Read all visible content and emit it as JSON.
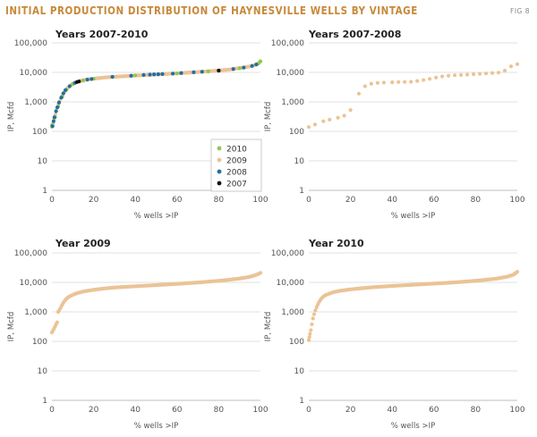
{
  "figure": {
    "title": "INITIAL PRODUCTION DISTRIBUTION OF HAYNESVILLE WELLS BY VINTAGE",
    "label": "FIG 8"
  },
  "colors": {
    "2010": "#8fc84f",
    "2009": "#ebc396",
    "2008": "#1f6fa3",
    "2007": "#111111",
    "title": "#c8893a"
  },
  "chart_data": [
    {
      "type": "scatter",
      "title": "Years 2007-2010",
      "xlabel": "% wells >IP",
      "ylabel": "IP, Mcfd",
      "xlim": [
        0,
        100
      ],
      "ylim": [
        1,
        100000
      ],
      "yscale": "log",
      "xticks": [
        "0",
        "20",
        "40",
        "60",
        "80",
        "100"
      ],
      "yticks": [
        "1",
        "10",
        "100",
        "1,000",
        "10,000",
        "100,000"
      ],
      "legend": {
        "position": "lower-right",
        "entries": [
          "2010",
          "2009",
          "2008",
          "2007"
        ]
      },
      "curve": [
        [
          0,
          140
        ],
        [
          0.5,
          180
        ],
        [
          1,
          250
        ],
        [
          1.5,
          350
        ],
        [
          2,
          480
        ],
        [
          3,
          800
        ],
        [
          4,
          1200
        ],
        [
          5,
          1700
        ],
        [
          6,
          2200
        ],
        [
          7,
          2700
        ],
        [
          8,
          3200
        ],
        [
          9,
          3700
        ],
        [
          10,
          4100
        ],
        [
          12,
          4700
        ],
        [
          14,
          5200
        ],
        [
          16,
          5600
        ],
        [
          20,
          6100
        ],
        [
          25,
          6700
        ],
        [
          30,
          7100
        ],
        [
          40,
          7800
        ],
        [
          50,
          8500
        ],
        [
          60,
          9300
        ],
        [
          70,
          10300
        ],
        [
          80,
          11500
        ],
        [
          85,
          12500
        ],
        [
          90,
          14000
        ],
        [
          95,
          16000
        ],
        [
          97,
          17500
        ],
        [
          99,
          20000
        ],
        [
          100,
          24000
        ]
      ],
      "series": [
        {
          "name": "2009",
          "values": [
            [
              0,
              140
            ],
            [
              0.5,
              180
            ],
            [
              1,
              250
            ],
            [
              1.5,
              350
            ],
            [
              2,
              480
            ],
            [
              3,
              800
            ],
            [
              4,
              1200
            ],
            [
              5,
              1700
            ],
            [
              6,
              2200
            ],
            [
              7,
              2700
            ],
            [
              8,
              3200
            ],
            [
              9,
              3700
            ],
            [
              10,
              4100
            ],
            [
              12,
              4700
            ],
            [
              14,
              5200
            ],
            [
              16,
              5600
            ],
            [
              20,
              6100
            ],
            [
              25,
              6700
            ],
            [
              30,
              7100
            ],
            [
              40,
              7800
            ],
            [
              50,
              8500
            ],
            [
              60,
              9300
            ],
            [
              70,
              10300
            ],
            [
              80,
              11500
            ],
            [
              85,
              12500
            ],
            [
              90,
              14000
            ],
            [
              95,
              16000
            ],
            [
              97,
              17500
            ],
            [
              99,
              20000
            ],
            [
              100,
              24000
            ]
          ]
        },
        {
          "name": "2010",
          "values": [
            [
              0,
              160
            ],
            [
              1.5,
              300
            ],
            [
              3,
              700
            ],
            [
              5,
              1500
            ],
            [
              7,
              2600
            ],
            [
              10,
              4000
            ],
            [
              15,
              5300
            ],
            [
              20,
              6100
            ],
            [
              40,
              7900
            ],
            [
              60,
              9200
            ],
            [
              75,
              10800
            ],
            [
              90,
              13800
            ],
            [
              99,
              20000
            ],
            [
              100,
              23500
            ]
          ]
        },
        {
          "name": "2008",
          "values": [
            [
              0.3,
              150
            ],
            [
              0.8,
              220
            ],
            [
              1.2,
              300
            ],
            [
              2,
              480
            ],
            [
              2.6,
              650
            ],
            [
              3.4,
              950
            ],
            [
              4.5,
              1400
            ],
            [
              5.5,
              1950
            ],
            [
              6.5,
              2500
            ],
            [
              8.5,
              3400
            ],
            [
              11,
              4400
            ],
            [
              17,
              5700
            ],
            [
              19,
              5950
            ],
            [
              29,
              7050
            ],
            [
              38,
              7700
            ],
            [
              44,
              8200
            ],
            [
              47,
              8400
            ],
            [
              49,
              8550
            ],
            [
              51,
              8650
            ],
            [
              53,
              8800
            ],
            [
              58,
              9100
            ],
            [
              62,
              9500
            ],
            [
              68,
              10100
            ],
            [
              72,
              10500
            ],
            [
              80,
              11500
            ],
            [
              87,
              13000
            ],
            [
              92,
              14500
            ],
            [
              96,
              16500
            ],
            [
              98,
              18500
            ]
          ]
        },
        {
          "name": "2007",
          "values": [
            [
              12,
              4700
            ],
            [
              13,
              4950
            ],
            [
              80,
              11500
            ]
          ]
        }
      ]
    },
    {
      "type": "scatter",
      "title": "Years 2007-2008",
      "xlabel": "% wells >IP",
      "ylabel": "IP, Mcfd",
      "xlim": [
        0,
        100
      ],
      "ylim": [
        1,
        100000
      ],
      "yscale": "log",
      "xticks": [
        "0",
        "20",
        "40",
        "60",
        "80",
        "100"
      ],
      "yticks": [
        "1",
        "10",
        "100",
        "1,000",
        "10,000",
        "100,000"
      ],
      "series": [
        {
          "name": "2007-2008",
          "values": [
            [
              0,
              140
            ],
            [
              3,
              170
            ],
            [
              7,
              220
            ],
            [
              10,
              250
            ],
            [
              14,
              290
            ],
            [
              17,
              340
            ],
            [
              20,
              530
            ],
            [
              24,
              1900
            ],
            [
              27,
              3400
            ],
            [
              30,
              4100
            ],
            [
              33,
              4400
            ],
            [
              36,
              4500
            ],
            [
              40,
              4600
            ],
            [
              43,
              4700
            ],
            [
              46,
              4750
            ],
            [
              49,
              4800
            ],
            [
              52,
              5100
            ],
            [
              55,
              5500
            ],
            [
              58,
              6000
            ],
            [
              61,
              6700
            ],
            [
              64,
              7300
            ],
            [
              67,
              7700
            ],
            [
              70,
              8000
            ],
            [
              73,
              8200
            ],
            [
              76,
              8400
            ],
            [
              79,
              8700
            ],
            [
              82,
              8900
            ],
            [
              85,
              9200
            ],
            [
              88,
              9500
            ],
            [
              91,
              9800
            ],
            [
              94,
              11500
            ],
            [
              97,
              16000
            ],
            [
              100,
              19000
            ]
          ]
        }
      ]
    },
    {
      "type": "scatter",
      "title": "Year 2009",
      "xlabel": "% wells >IP",
      "ylabel": "IP, Mcfd",
      "xlim": [
        0,
        100
      ],
      "ylim": [
        1,
        100000
      ],
      "yscale": "log",
      "xticks": [
        "0",
        "20",
        "40",
        "60",
        "80",
        "100"
      ],
      "yticks": [
        "1",
        "10",
        "100",
        "1,000",
        "10,000",
        "100,000"
      ],
      "series": [
        {
          "name": "2009",
          "values": [
            [
              0,
              200
            ],
            [
              0.5,
              230
            ],
            [
              1,
              270
            ],
            [
              1.5,
              320
            ],
            [
              2,
              380
            ],
            [
              2.5,
              440
            ],
            [
              3,
              1000
            ],
            [
              4,
              1300
            ],
            [
              5,
              1800
            ],
            [
              6,
              2300
            ],
            [
              7,
              2800
            ],
            [
              8,
              3200
            ],
            [
              10,
              3800
            ],
            [
              12,
              4300
            ],
            [
              15,
              4900
            ],
            [
              20,
              5600
            ],
            [
              25,
              6200
            ],
            [
              30,
              6700
            ],
            [
              40,
              7400
            ],
            [
              50,
              8100
            ],
            [
              60,
              8900
            ],
            [
              70,
              9900
            ],
            [
              80,
              11300
            ],
            [
              90,
              13500
            ],
            [
              95,
              15500
            ],
            [
              98,
              18000
            ],
            [
              100,
              21000
            ]
          ]
        }
      ]
    },
    {
      "type": "scatter",
      "title": "Year 2010",
      "xlabel": "% wells >IP",
      "ylabel": "IP, Mcfd",
      "xlim": [
        0,
        100
      ],
      "ylim": [
        1,
        100000
      ],
      "yscale": "log",
      "xticks": [
        "0",
        "20",
        "40",
        "60",
        "80",
        "100"
      ],
      "yticks": [
        "1",
        "10",
        "100",
        "1,000",
        "10,000",
        "100,000"
      ],
      "series": [
        {
          "name": "2010",
          "values": [
            [
              0,
              110
            ],
            [
              0.3,
              140
            ],
            [
              0.6,
              180
            ],
            [
              1,
              240
            ],
            [
              1.5,
              380
            ],
            [
              2,
              600
            ],
            [
              3,
              1050
            ],
            [
              4,
              1600
            ],
            [
              5,
              2200
            ],
            [
              6,
              2800
            ],
            [
              7,
              3300
            ],
            [
              8,
              3700
            ],
            [
              10,
              4200
            ],
            [
              12,
              4700
            ],
            [
              15,
              5200
            ],
            [
              20,
              5800
            ],
            [
              25,
              6300
            ],
            [
              30,
              6800
            ],
            [
              40,
              7600
            ],
            [
              50,
              8300
            ],
            [
              60,
              9100
            ],
            [
              70,
              10000
            ],
            [
              80,
              11300
            ],
            [
              90,
              13400
            ],
            [
              95,
              15500
            ],
            [
              98,
              18000
            ],
            [
              100,
              23000
            ]
          ]
        }
      ]
    }
  ]
}
